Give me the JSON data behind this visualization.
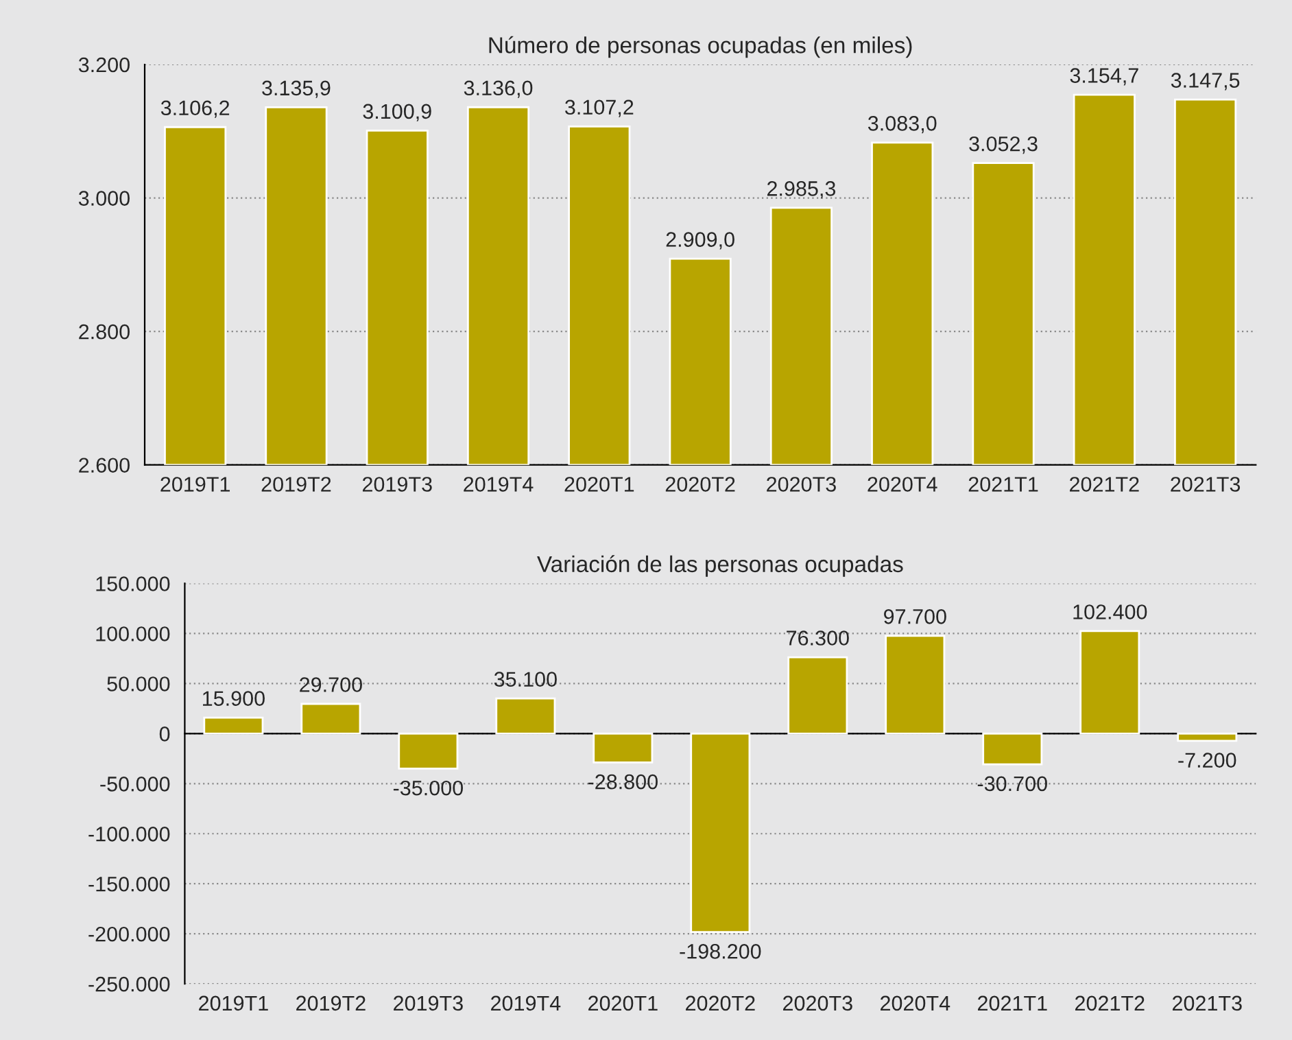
{
  "chart_data": [
    {
      "type": "bar",
      "title": "Número de personas ocupadas (en miles)",
      "categories": [
        "2019T1",
        "2019T2",
        "2019T3",
        "2019T4",
        "2020T1",
        "2020T2",
        "2020T3",
        "2020T4",
        "2021T1",
        "2021T2",
        "2021T3"
      ],
      "values": [
        3106.2,
        3135.9,
        3100.9,
        3136.0,
        3107.2,
        2909.0,
        2985.3,
        3083.0,
        3052.3,
        3154.7,
        3147.5
      ],
      "value_labels": [
        "3.106,2",
        "3.135,9",
        "3.100,9",
        "3.136,0",
        "3.107,2",
        "2.909,0",
        "2.985,3",
        "3.083,0",
        "3.052,3",
        "3.154,7",
        "3.147,5"
      ],
      "color": "#b8a500",
      "ylim": [
        2600,
        3200
      ],
      "yticks": [
        {
          "value": 2600,
          "label": "2.600"
        },
        {
          "value": 2800,
          "label": "2.800"
        },
        {
          "value": 3000,
          "label": "3.000"
        },
        {
          "value": 3200,
          "label": "3.200"
        }
      ],
      "grid": "y",
      "legend": false
    },
    {
      "type": "bar",
      "title": "Variación de las personas ocupadas",
      "categories": [
        "2019T1",
        "2019T2",
        "2019T3",
        "2019T4",
        "2020T1",
        "2020T2",
        "2020T3",
        "2020T4",
        "2021T1",
        "2021T2",
        "2021T3"
      ],
      "values": [
        15900,
        29700,
        -35000,
        35100,
        -28800,
        -198200,
        76300,
        97700,
        -30700,
        102400,
        -7200
      ],
      "value_labels": [
        "15.900",
        "29.700",
        "-35.000",
        "35.100",
        "-28.800",
        "-198.200",
        "76.300",
        "97.700",
        "-30.700",
        "102.400",
        "-7.200"
      ],
      "color": "#b8a500",
      "ylim": [
        -250000,
        150000
      ],
      "yticks": [
        {
          "value": -250000,
          "label": "-250.000"
        },
        {
          "value": -200000,
          "label": "-200.000"
        },
        {
          "value": -150000,
          "label": "-150.000"
        },
        {
          "value": -100000,
          "label": "-100.000"
        },
        {
          "value": -50000,
          "label": "-50.000"
        },
        0,
        {
          "value": 50000,
          "label": "50.000"
        },
        {
          "value": 100000,
          "label": "100.000"
        },
        {
          "value": 150000,
          "label": "150.000"
        }
      ],
      "grid": "y",
      "legend": false
    }
  ]
}
